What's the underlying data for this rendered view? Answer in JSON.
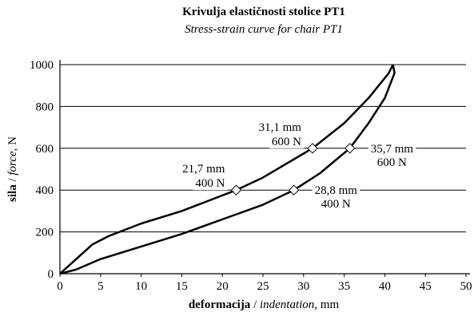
{
  "chart_data": {
    "type": "line",
    "title": "Krivulja elastičnosti stolice PT1",
    "subtitle": "Stress-strain curve for chair PT1",
    "ylabel": [
      "sila",
      " / ",
      "force,",
      " N"
    ],
    "xlabel": [
      "deformacija",
      " / ",
      "indentation,",
      " mm"
    ],
    "xlim": [
      0,
      50
    ],
    "xticks": [
      0,
      5,
      10,
      15,
      20,
      25,
      30,
      35,
      40,
      45,
      50
    ],
    "ylim": [
      0,
      1000
    ],
    "yticks": [
      0,
      200,
      400,
      600,
      800,
      1000
    ],
    "grid": true,
    "series": [
      {
        "color": "#000000",
        "x": [
          0,
          2,
          4,
          6,
          8,
          10,
          15,
          21.7,
          25,
          31.1,
          35,
          38,
          40.5,
          41
        ],
        "values": [
          0,
          70,
          140,
          180,
          210,
          240,
          300,
          400,
          460,
          600,
          720,
          840,
          960,
          1000
        ],
        "points": [
          {
            "x": 21.7,
            "y": 400,
            "label": [
              "21,7 mm",
              "400 N"
            ]
          },
          {
            "x": 31.1,
            "y": 600,
            "label": [
              "31,1 mm",
              "600 N"
            ]
          }
        ]
      },
      {
        "color": "#000000",
        "x": [
          0,
          2,
          5,
          10,
          15,
          20,
          25,
          28.8,
          32,
          35.7,
          38,
          40,
          41.2,
          41
        ],
        "values": [
          0,
          20,
          70,
          130,
          190,
          260,
          330,
          400,
          480,
          600,
          720,
          840,
          960,
          1000
        ],
        "points": [
          {
            "x": 35.7,
            "y": 600,
            "label": [
              "35,7 mm",
              "600 N"
            ]
          },
          {
            "x": 28.8,
            "y": 400,
            "label": [
              "28,8 mm",
              "400 N"
            ]
          }
        ]
      }
    ]
  }
}
